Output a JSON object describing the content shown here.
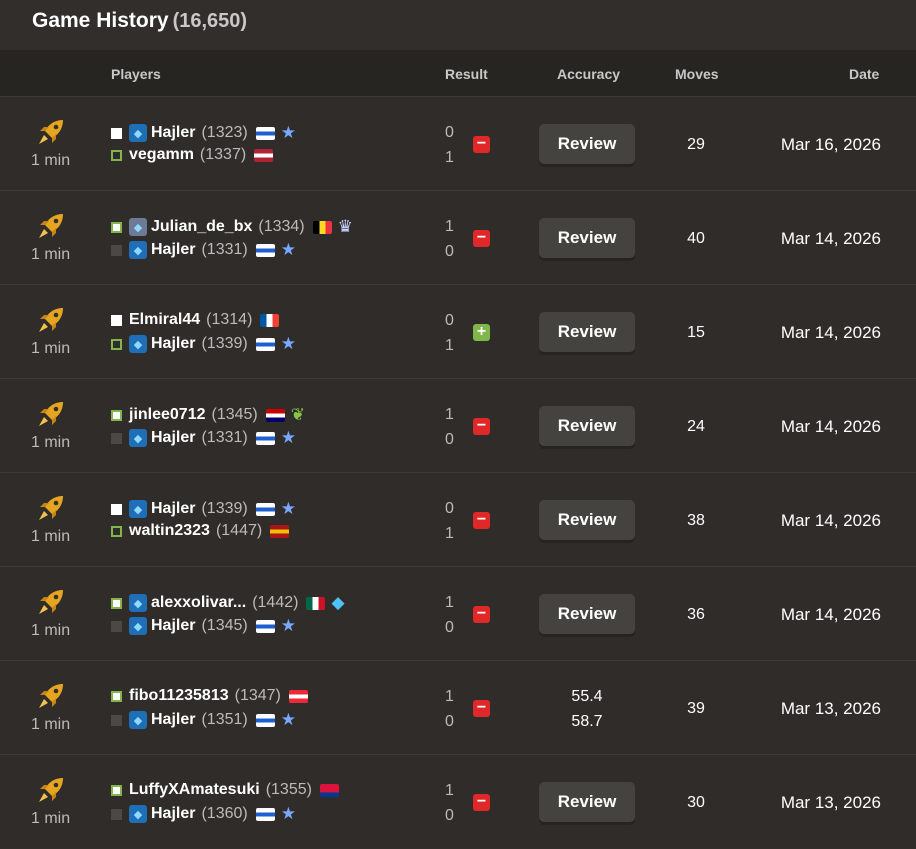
{
  "header": {
    "title": "Game History",
    "count": "(16,650)"
  },
  "columns": [
    "Players",
    "Result",
    "Accuracy",
    "Moves",
    "Date"
  ],
  "rows": [
    {
      "time": "1 min",
      "players": [
        {
          "name": "Hajler",
          "rating": "(1323)"
        },
        {
          "name": "vegamm",
          "rating": "(1337)"
        }
      ],
      "results": [
        "0",
        "1"
      ],
      "review": "Review",
      "moves": "29",
      "date": "Mar 16, 2026"
    },
    {
      "time": "1 min",
      "players": [
        {
          "name": "Julian_de_bx",
          "rating": "(1334)"
        },
        {
          "name": "Hajler",
          "rating": "(1331)"
        }
      ],
      "results": [
        "1",
        "0"
      ],
      "review": "Review",
      "moves": "40",
      "date": "Mar 14, 2026"
    },
    {
      "time": "1 min",
      "players": [
        {
          "name": "Elmiral44",
          "rating": "(1314)"
        },
        {
          "name": "Hajler",
          "rating": "(1339)"
        }
      ],
      "results": [
        "0",
        "1"
      ],
      "review": "Review",
      "moves": "15",
      "date": "Mar 14, 2026"
    },
    {
      "time": "1 min",
      "players": [
        {
          "name": "jinlee0712",
          "rating": "(1345)"
        },
        {
          "name": "Hajler",
          "rating": "(1331)"
        }
      ],
      "results": [
        "1",
        "0"
      ],
      "review": "Review",
      "moves": "24",
      "date": "Mar 14, 2026"
    },
    {
      "time": "1 min",
      "players": [
        {
          "name": "Hajler",
          "rating": "(1339)"
        },
        {
          "name": "waltin2323",
          "rating": "(1447)"
        }
      ],
      "results": [
        "0",
        "1"
      ],
      "review": "Review",
      "moves": "38",
      "date": "Mar 14, 2026"
    },
    {
      "time": "1 min",
      "players": [
        {
          "name": "alexxolivar...",
          "rating": "(1442)"
        },
        {
          "name": "Hajler",
          "rating": "(1345)"
        }
      ],
      "results": [
        "1",
        "0"
      ],
      "review": "Review",
      "moves": "36",
      "date": "Mar 14, 2026"
    },
    {
      "time": "1 min",
      "players": [
        {
          "name": "fibo11235813",
          "rating": "(1347)"
        },
        {
          "name": "Hajler",
          "rating": "(1351)"
        }
      ],
      "results": [
        "1",
        "0"
      ],
      "accuracy": [
        "55.4",
        "58.7"
      ],
      "moves": "39",
      "date": "Mar 13, 2026"
    },
    {
      "time": "1 min",
      "players": [
        {
          "name": "LuffyXAmatesuki",
          "rating": "(1355)"
        },
        {
          "name": "Hajler",
          "rating": "(1360)"
        }
      ],
      "results": [
        "1",
        "0"
      ],
      "review": "Review",
      "moves": "30",
      "date": "Mar 13, 2026"
    }
  ]
}
